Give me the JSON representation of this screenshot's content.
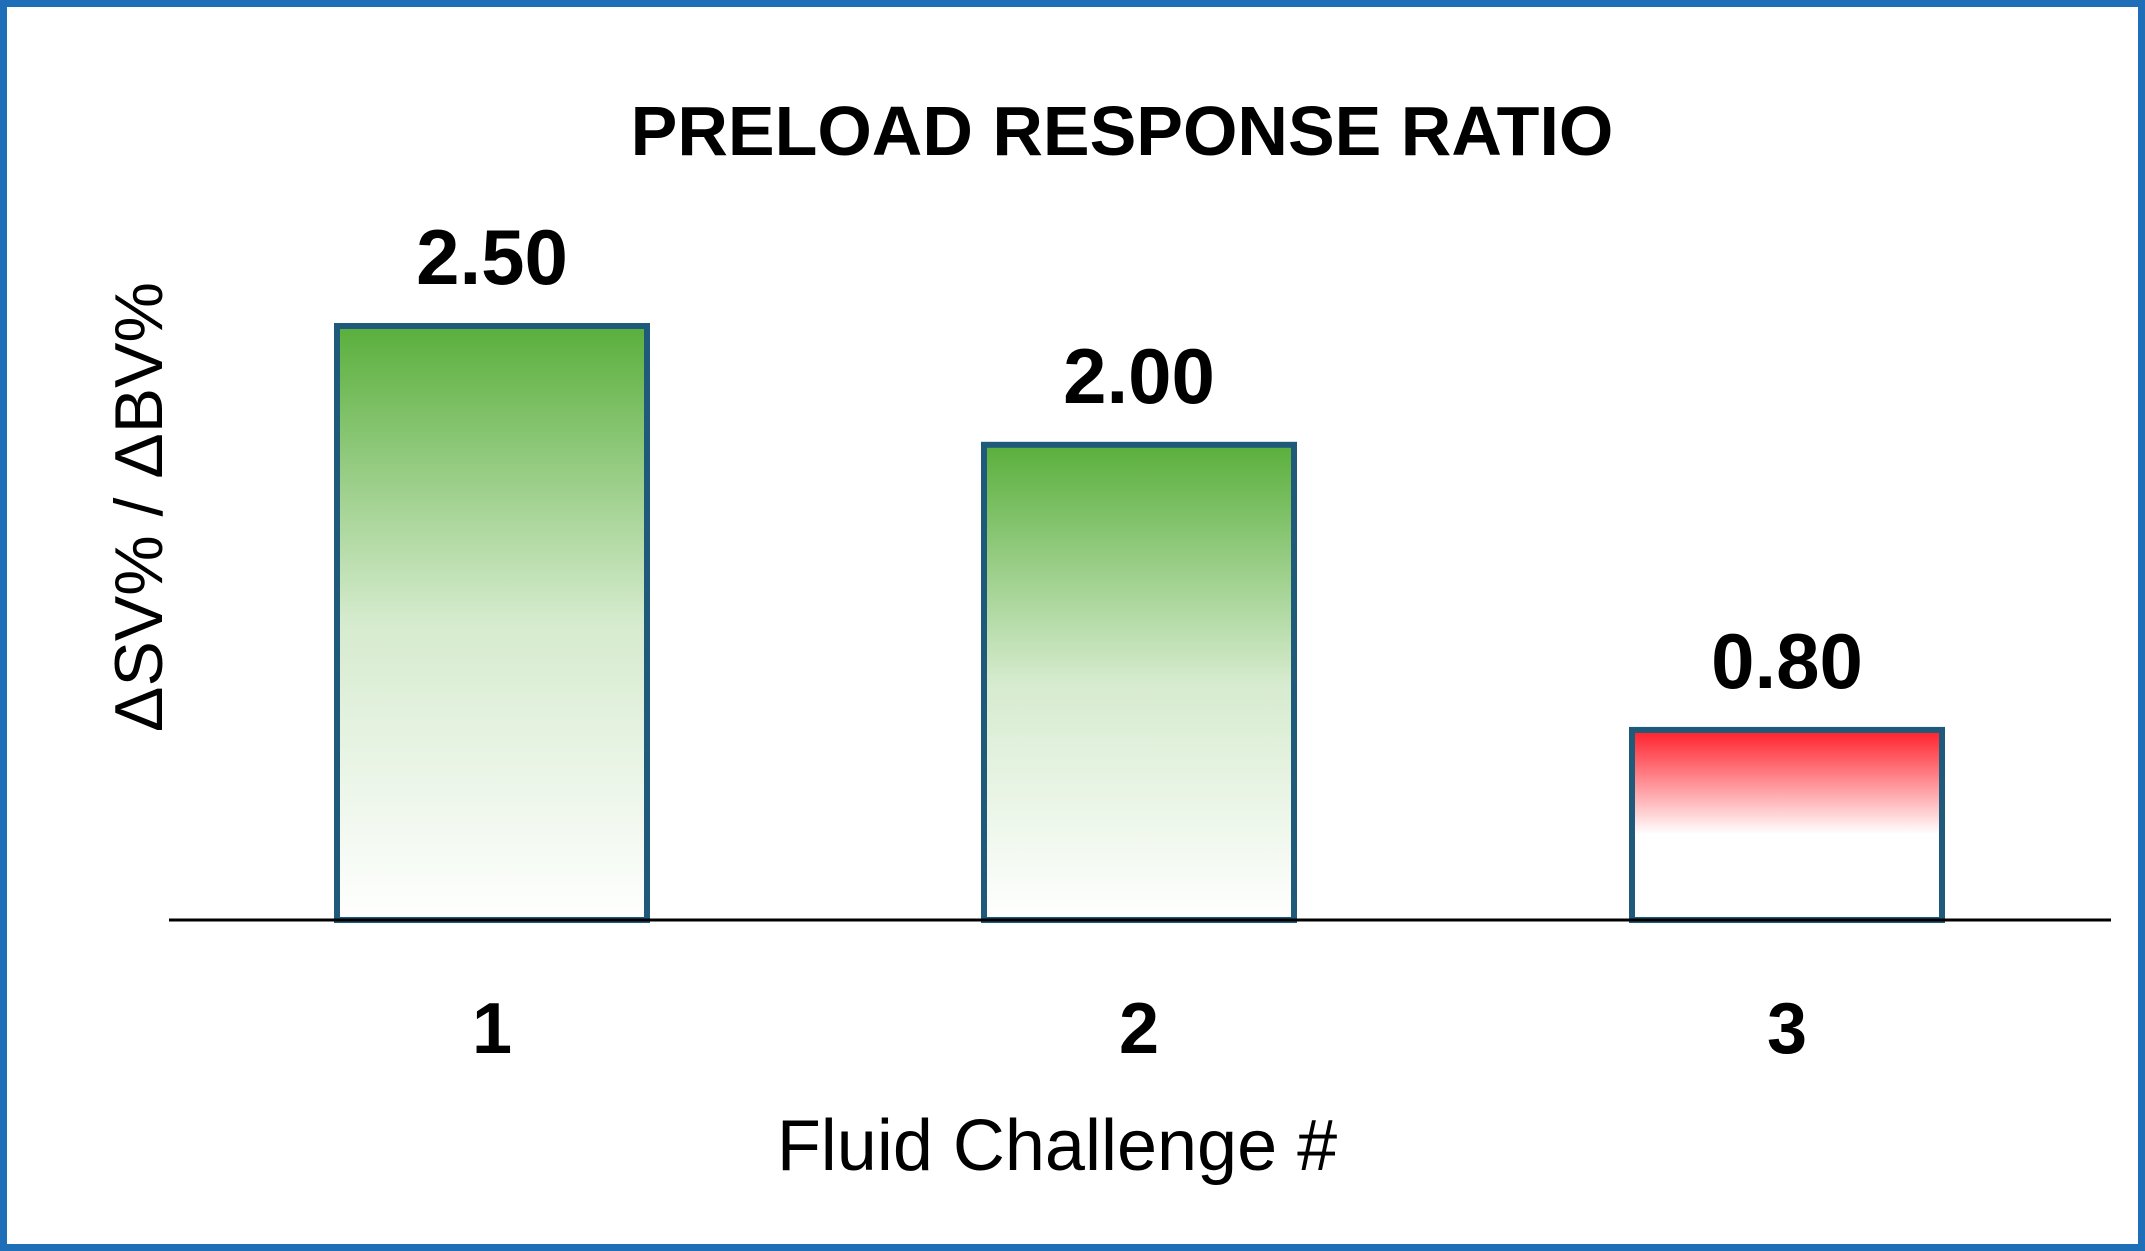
{
  "chart_data": {
    "type": "bar",
    "title": "PRELOAD RESPONSE RATIO",
    "xlabel": "Fluid Challenge #",
    "ylabel": "ΔSV%  / ΔBV%",
    "categories": [
      "1",
      "2",
      "3"
    ],
    "values": [
      2.5,
      2.0,
      0.8
    ],
    "data_labels": [
      "2.50",
      "2.00",
      "0.80"
    ],
    "bar_colors": [
      "#5aaf3c",
      "#5aaf3c",
      "#ff1f2a"
    ],
    "bar_outline_color": "#1f5a7a",
    "frame_color": "#1f6fb8",
    "ylim": [
      0,
      2.5
    ],
    "grid": false,
    "legend": "none"
  }
}
